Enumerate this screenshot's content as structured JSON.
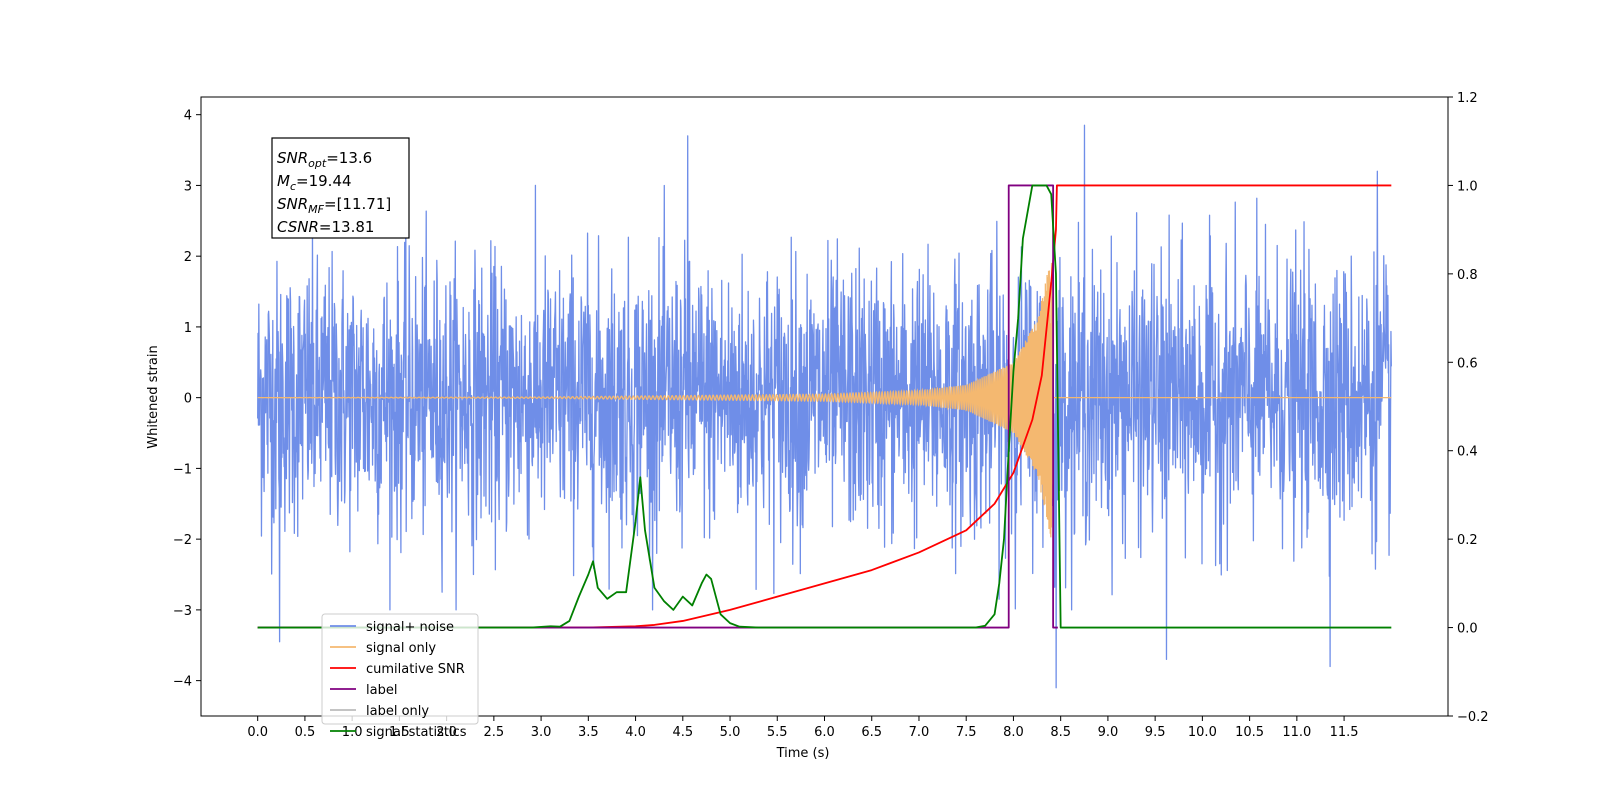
{
  "chart_data": {
    "type": "line",
    "xlabel": "Time (s)",
    "ylabel": "Whitened strain",
    "xlim": [
      -0.6,
      12.6
    ],
    "ylim": [
      -4.5,
      4.25
    ],
    "y2lim": [
      -0.2,
      1.2
    ],
    "x_ticks": [
      0.0,
      0.5,
      1.0,
      1.5,
      2.0,
      2.5,
      3.0,
      3.5,
      4.0,
      4.5,
      5.0,
      5.5,
      6.0,
      6.5,
      7.0,
      7.5,
      8.0,
      8.5,
      9.0,
      9.5,
      10.0,
      10.5,
      11.0,
      11.5
    ],
    "x_tick_labels": [
      "0.0",
      "0.5",
      "1.0",
      "1.5",
      "2.0",
      "2.5",
      "3.0",
      "3.5",
      "4.0",
      "4.5",
      "5.0",
      "5.5",
      "6.0",
      "6.5",
      "7.0",
      "7.5",
      "8.0",
      "8.5",
      "9.0",
      "9.5",
      "10.0",
      "10.5",
      "11.0",
      "11.5"
    ],
    "y_ticks": [
      -4,
      -3,
      -2,
      -1,
      0,
      1,
      2,
      3,
      4
    ],
    "y_tick_labels": [
      "−4",
      "−3",
      "−2",
      "−1",
      "0",
      "1",
      "2",
      "3",
      "4"
    ],
    "y2_ticks": [
      -0.2,
      0.0,
      0.2,
      0.4,
      0.6,
      0.8,
      1.0,
      1.2
    ],
    "y2_tick_labels": [
      "−0.2",
      "0.0",
      "0.2",
      "0.4",
      "0.6",
      "0.8",
      "1.0",
      "1.2"
    ],
    "grid": false,
    "legend_position": "lower-left",
    "stats_box": {
      "snr_opt": {
        "name": "SNR",
        "sub": "opt",
        "value": "=13.6"
      },
      "mc": {
        "name": "M",
        "sub": "c",
        "value": "=19.44"
      },
      "snr_mf": {
        "name": "SNR",
        "sub": "MF",
        "value": "=[11.71]"
      },
      "csnr": {
        "name": "CSNR",
        "sub": "",
        "value": "=13.81"
      }
    },
    "series": [
      {
        "name": "signal+ noise",
        "axis": "left",
        "color": "#6f8ee8",
        "kind": "noise",
        "x_range": [
          0.0,
          12.0
        ],
        "envelope": [
          -2.6,
          2.6
        ],
        "spikes": [
          [
            0.23,
            -3.45
          ],
          [
            4.55,
            3.7
          ],
          [
            8.45,
            -4.1
          ],
          [
            8.75,
            3.85
          ],
          [
            9.62,
            -3.7
          ],
          [
            11.35,
            -3.8
          ],
          [
            11.85,
            3.2
          ]
        ]
      },
      {
        "name": "signal only",
        "axis": "left",
        "color": "#f4b870",
        "kind": "chirp",
        "x_range": [
          0.0,
          12.0
        ],
        "merger_time": 8.42,
        "amplitude_at": [
          [
            3.0,
            0.01
          ],
          [
            6.0,
            0.05
          ],
          [
            7.0,
            0.1
          ],
          [
            7.5,
            0.18
          ],
          [
            8.0,
            0.5
          ],
          [
            8.25,
            1.1
          ],
          [
            8.4,
            2.0
          ]
        ]
      },
      {
        "name": "cumilative SNR",
        "axis": "right",
        "color": "#ff0000",
        "x": [
          0.0,
          3.5,
          4.0,
          4.2,
          4.5,
          5.0,
          5.5,
          6.0,
          6.5,
          7.0,
          7.5,
          7.8,
          8.0,
          8.2,
          8.3,
          8.4,
          8.45,
          8.46,
          12.0
        ],
        "y": [
          0.0,
          0.0,
          0.003,
          0.006,
          0.015,
          0.04,
          0.07,
          0.1,
          0.13,
          0.17,
          0.22,
          0.28,
          0.35,
          0.47,
          0.57,
          0.78,
          0.9,
          1.0,
          1.0
        ]
      },
      {
        "name": "label",
        "axis": "right",
        "color": "#800080",
        "x": [
          0.0,
          7.95,
          7.95,
          8.42,
          8.42,
          8.47
        ],
        "y": [
          0.0,
          0.0,
          1.0,
          1.0,
          0.0,
          0.0
        ]
      },
      {
        "name": "label only",
        "axis": "right",
        "color": "#bbbbbb",
        "x": [],
        "y": []
      },
      {
        "name": "signal statistics",
        "axis": "right",
        "color": "#008000",
        "x": [
          0.0,
          2.9,
          3.1,
          3.2,
          3.3,
          3.4,
          3.5,
          3.55,
          3.6,
          3.7,
          3.8,
          3.9,
          4.0,
          4.05,
          4.1,
          4.2,
          4.3,
          4.4,
          4.5,
          4.6,
          4.7,
          4.75,
          4.8,
          4.9,
          5.0,
          5.1,
          5.3,
          7.6,
          7.7,
          7.8,
          7.85,
          7.9,
          7.95,
          8.0,
          8.05,
          8.1,
          8.2,
          8.25,
          8.3,
          8.35,
          8.4,
          8.45,
          8.5,
          12.0
        ],
        "y": [
          0.0,
          0.0,
          0.003,
          0.002,
          0.015,
          0.07,
          0.12,
          0.15,
          0.09,
          0.065,
          0.08,
          0.08,
          0.24,
          0.34,
          0.22,
          0.09,
          0.06,
          0.04,
          0.07,
          0.05,
          0.1,
          0.12,
          0.11,
          0.03,
          0.01,
          0.002,
          0.0,
          0.0,
          0.004,
          0.03,
          0.1,
          0.2,
          0.4,
          0.58,
          0.7,
          0.88,
          1.0,
          1.0,
          1.0,
          1.0,
          0.98,
          0.8,
          0.0,
          0.0
        ]
      }
    ]
  }
}
